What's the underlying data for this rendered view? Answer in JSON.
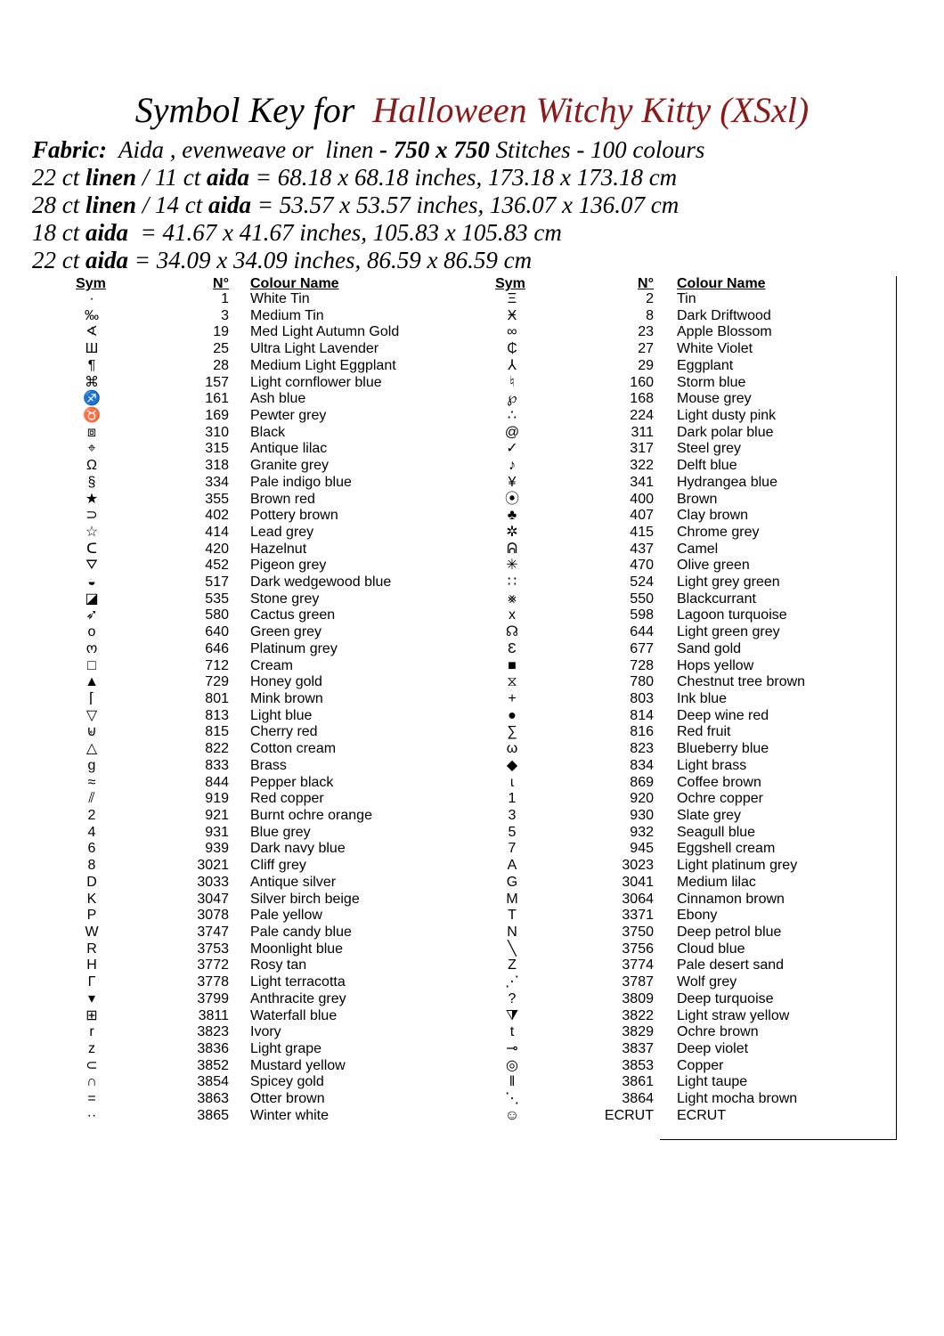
{
  "header": {
    "title_prefix": "Symbol Key for",
    "title_name": "Halloween Witchy Kitty (XSxl)",
    "lines": [
      [
        {
          "text": "Fabric:",
          "bold": true
        },
        {
          "text": "  Aida , evenweave or  linen ",
          "bold": false
        },
        {
          "text": "- 750 x 750",
          "bold": true
        },
        {
          "text": " Stitches - 100 colours",
          "bold": false
        }
      ],
      [
        {
          "text": "22 ct ",
          "bold": false
        },
        {
          "text": "linen",
          "bold": true
        },
        {
          "text": " / 11 ct ",
          "bold": false
        },
        {
          "text": "aida",
          "bold": true
        },
        {
          "text": " = 68.18 x 68.18 inches, 173.18 x 173.18 cm",
          "bold": false
        }
      ],
      [
        {
          "text": "28 ct ",
          "bold": false
        },
        {
          "text": "linen",
          "bold": true
        },
        {
          "text": " / 14 ct ",
          "bold": false
        },
        {
          "text": "aida",
          "bold": true
        },
        {
          "text": " = 53.57 x 53.57 inches, 136.07 x 136.07 cm",
          "bold": false
        }
      ],
      [
        {
          "text": "18 ct ",
          "bold": false
        },
        {
          "text": "aida",
          "bold": true
        },
        {
          "text": "  = 41.67 x 41.67 inches, 105.83 x 105.83 cm",
          "bold": false
        }
      ],
      [
        {
          "text": "22 ct ",
          "bold": false
        },
        {
          "text": "aida",
          "bold": true
        },
        {
          "text": " = 34.09 x 34.09 inches, 86.59 x 86.59 cm",
          "bold": false
        }
      ]
    ]
  },
  "table": {
    "blocks": [
      {
        "headers": [
          "Sym",
          "N°",
          "Colour Name"
        ],
        "rows": [
          [
            "·",
            1,
            "White Tin"
          ],
          [
            "‰",
            3,
            "Medium Tin"
          ],
          [
            "∢",
            19,
            "Med Light Autumn Gold"
          ],
          [
            "Ш",
            25,
            "Ultra Light Lavender"
          ],
          [
            "¶",
            28,
            "Medium Light Eggplant"
          ],
          [
            "⌘",
            157,
            "Light cornflower blue"
          ],
          [
            "♐",
            161,
            "Ash blue"
          ],
          [
            "♉",
            169,
            "Pewter grey"
          ],
          [
            "⧈",
            310,
            "Black"
          ],
          [
            "⌖",
            315,
            "Antique lilac"
          ],
          [
            "Ω",
            318,
            "Granite grey"
          ],
          [
            "§",
            334,
            "Pale indigo blue"
          ],
          [
            "★",
            355,
            "Brown red"
          ],
          [
            "⊃",
            402,
            "Pottery brown"
          ],
          [
            "☆",
            414,
            "Lead grey"
          ],
          [
            "ᑕ",
            420,
            "Hazelnut"
          ],
          [
            "⛛",
            452,
            "Pigeon grey"
          ],
          [
            "◒",
            517,
            "Dark wedgewood blue"
          ],
          [
            "◪",
            535,
            "Stone grey"
          ],
          [
            "➶",
            580,
            "Cactus green"
          ],
          [
            "o",
            640,
            "Green grey"
          ],
          [
            "ო",
            646,
            "Platinum grey"
          ],
          [
            "□",
            712,
            "Cream"
          ],
          [
            "▲",
            729,
            "Honey gold"
          ],
          [
            "⌈",
            801,
            "Mink brown"
          ],
          [
            "▽",
            813,
            "Light blue"
          ],
          [
            "⊌",
            815,
            "Cherry red"
          ],
          [
            "△",
            822,
            "Cotton cream"
          ],
          [
            "g",
            833,
            "Brass"
          ],
          [
            "≈",
            844,
            "Pepper black"
          ],
          [
            "⫽",
            919,
            "Red copper"
          ],
          [
            "2",
            921,
            "Burnt ochre orange"
          ],
          [
            "4",
            931,
            "Blue grey"
          ],
          [
            "6",
            939,
            "Dark navy blue"
          ],
          [
            "8",
            3021,
            "Cliff grey"
          ],
          [
            "D",
            3033,
            "Antique silver"
          ],
          [
            "K",
            3047,
            "Silver birch beige"
          ],
          [
            "P",
            3078,
            "Pale yellow"
          ],
          [
            "W",
            3747,
            "Pale candy blue"
          ],
          [
            "R",
            3753,
            "Moonlight blue"
          ],
          [
            "H",
            3772,
            "Rosy tan"
          ],
          [
            "Γ",
            3778,
            "Light terracotta"
          ],
          [
            "▾",
            3799,
            "Anthracite grey"
          ],
          [
            "⊞",
            3811,
            "Waterfall blue"
          ],
          [
            "r",
            3823,
            "Ivory"
          ],
          [
            "z",
            3836,
            "Light grape"
          ],
          [
            "⊂",
            3852,
            "Mustard yellow"
          ],
          [
            "∩",
            3854,
            "Spicey gold"
          ],
          [
            "=",
            3863,
            "Otter brown"
          ],
          [
            "··",
            3865,
            "Winter white"
          ]
        ]
      },
      {
        "headers": [
          "Sym",
          "N°",
          "Colour Name"
        ],
        "rows": [
          [
            "Ξ",
            2,
            "Tin"
          ],
          [
            "Ӿ",
            8,
            "Dark Driftwood"
          ],
          [
            "∞",
            23,
            "Apple Blossom"
          ],
          [
            "₵",
            27,
            "White Violet"
          ],
          [
            "⅄",
            29,
            "Eggplant"
          ],
          [
            "♮",
            160,
            "Storm blue"
          ],
          [
            "℘",
            168,
            "Mouse grey"
          ],
          [
            "∴",
            224,
            "Light dusty pink"
          ],
          [
            "@",
            311,
            "Dark polar blue"
          ],
          [
            "✓",
            317,
            "Steel grey"
          ],
          [
            "♪",
            322,
            "Delft blue"
          ],
          [
            "¥",
            341,
            "Hydrangea blue"
          ],
          [
            "⦿",
            400,
            "Brown"
          ],
          [
            "♣",
            407,
            "Clay brown"
          ],
          [
            "✲",
            415,
            "Chrome grey"
          ],
          [
            "ᕱ",
            437,
            "Camel"
          ],
          [
            "✳",
            470,
            "Olive green"
          ],
          [
            "∷",
            524,
            "Light grey green"
          ],
          [
            "⨳",
            550,
            "Blackcurrant"
          ],
          [
            "x",
            598,
            "Lagoon turquoise"
          ],
          [
            "☊",
            644,
            "Light green grey"
          ],
          [
            "Ɛ",
            677,
            "Sand gold"
          ],
          [
            "■",
            728,
            "Hops yellow"
          ],
          [
            "⧖",
            780,
            "Chestnut tree brown"
          ],
          [
            "+",
            803,
            "Ink blue"
          ],
          [
            "●",
            814,
            "Deep wine red"
          ],
          [
            "∑",
            816,
            "Red fruit"
          ],
          [
            "ω",
            823,
            "Blueberry blue"
          ],
          [
            "◆",
            834,
            "Light brass"
          ],
          [
            "ɩ",
            869,
            "Coffee brown"
          ],
          [
            "1",
            920,
            "Ochre copper"
          ],
          [
            "3",
            930,
            "Slate grey"
          ],
          [
            "5",
            932,
            "Seagull blue"
          ],
          [
            "7",
            945,
            "Eggshell cream"
          ],
          [
            "A",
            3023,
            "Light platinum grey"
          ],
          [
            "G",
            3041,
            "Medium lilac"
          ],
          [
            "M",
            3064,
            "Cinnamon brown"
          ],
          [
            "T",
            3371,
            "Ebony"
          ],
          [
            "N",
            3750,
            "Deep petrol blue"
          ],
          [
            "╲",
            3756,
            "Cloud blue"
          ],
          [
            "Z",
            3774,
            "Pale desert sand"
          ],
          [
            "⋰",
            3787,
            "Wolf grey"
          ],
          [
            "?",
            3809,
            "Deep turquoise"
          ],
          [
            "⧩",
            3822,
            "Light straw yellow"
          ],
          [
            "t",
            3829,
            "Ochre brown"
          ],
          [
            "⊸",
            3837,
            "Deep violet"
          ],
          [
            "◎",
            3853,
            "Copper"
          ],
          [
            "‖",
            3861,
            "Light taupe"
          ],
          [
            "⋱",
            3864,
            "Light mocha brown"
          ],
          [
            "☺",
            "ECRUT",
            "ECRUT"
          ]
        ]
      }
    ]
  }
}
